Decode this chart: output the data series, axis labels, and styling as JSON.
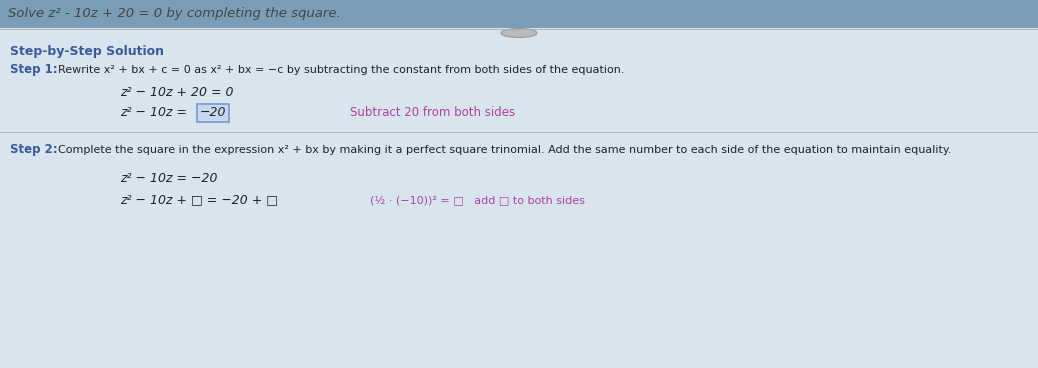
{
  "bg_top_color": "#7a9db8",
  "bg_main_color": "#d8e4ee",
  "title_text": "Solve z² - 10z + 20 = 0 by completing the square.",
  "title_color": "#444444",
  "title_fontstyle": "italic",
  "section_header": "Step-by-Step Solution",
  "section_header_color": "#3a5a9a",
  "step1_label": "Step 1: ",
  "step1_desc": "Rewrite x² + bx + c = 0 as x² + bx = −c by subtracting the constant from both sides of the equation.",
  "step1_color": "#3a5a9a",
  "step2_label": "Step 2: ",
  "step2_desc": "Complete the square in the expression x² + bx by making it a perfect square trinomial. Add the same number to each side of the equation to maintain equality.",
  "step2_color": "#3a5a9a",
  "eq1a": "z² − 10z + 20 = 0",
  "eq1b_left": "z² − 10z = ",
  "eq1b_box": "−20",
  "eq1_note": "Subtract 20 from both sides",
  "eq1_note_color": "#b040a0",
  "eq2a": "z² − 10z = −20",
  "eq2b_main": "z² − 10z + □ = −20 + □",
  "eq2b_right": "(½ · (−10))² = □   add □ to both sides",
  "eq2b_right_color": "#b040a0",
  "text_color": "#222222",
  "box_fill": "#c8d8f0",
  "box_edge": "#7799cc",
  "divider_color": "#aaaaaa",
  "oval_color": "#bbbbbb"
}
